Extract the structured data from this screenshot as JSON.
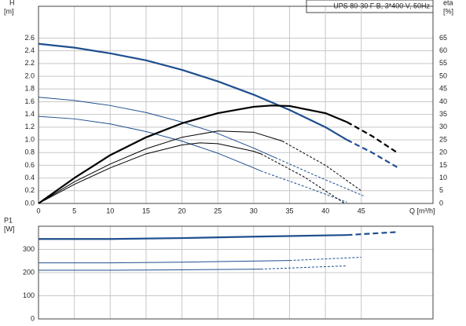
{
  "chart_data": [
    {
      "type": "line",
      "box_label": "UPS 80-30 F B, 3*400 V, 50Hz",
      "y_label": "H",
      "y_unit": "[m]",
      "y2_label": "eta",
      "y2_unit": "[%]",
      "x_label": "Q [m³/h]",
      "xlim": [
        0,
        55
      ],
      "xticks": [
        0,
        5,
        10,
        15,
        20,
        25,
        30,
        35,
        40,
        45
      ],
      "ylim": [
        0,
        3.1
      ],
      "yticks": [
        {
          "value": 0,
          "label": "0.0"
        },
        0.2,
        0.4,
        0.6,
        0.8,
        {
          "value": 1,
          "label": "1.0"
        },
        1.2,
        1.4,
        1.6,
        1.8,
        {
          "value": 2,
          "label": "2.0"
        },
        2.2,
        2.4,
        2.6
      ],
      "y2lim": [
        0,
        77.5
      ],
      "y2ticks": [
        0,
        5,
        10,
        15,
        20,
        25,
        30,
        35,
        40,
        45,
        50,
        55,
        60,
        65
      ],
      "grid": true,
      "series": [
        {
          "color": "#1f4f8f",
          "width": 2.2,
          "style": "solid",
          "x": [
            0,
            5,
            10,
            15,
            20,
            25,
            30,
            35,
            40,
            43
          ],
          "values": [
            2.51,
            2.45,
            2.36,
            2.25,
            2.1,
            1.92,
            1.71,
            1.47,
            1.2,
            1.0
          ]
        },
        {
          "color": "#1f4f8f",
          "width": 2.2,
          "style": "dashed",
          "x": [
            43,
            46.5,
            50
          ],
          "values": [
            1.0,
            0.8,
            0.57
          ]
        },
        {
          "color": "#1f4f8f",
          "width": 1,
          "style": "solid",
          "x": [
            0,
            5,
            10,
            15,
            20,
            25,
            30,
            33
          ],
          "values": [
            1.67,
            1.62,
            1.54,
            1.43,
            1.28,
            1.1,
            0.87,
            0.72
          ]
        },
        {
          "color": "#1f4f8f",
          "width": 1,
          "style": "dashed",
          "x": [
            33,
            39,
            45.3
          ],
          "values": [
            0.72,
            0.42,
            0.12
          ]
        },
        {
          "color": "#1f4f8f",
          "width": 1,
          "style": "solid",
          "x": [
            0,
            5,
            10,
            15,
            20,
            25,
            30,
            31
          ],
          "values": [
            1.37,
            1.33,
            1.25,
            1.13,
            0.98,
            0.79,
            0.56,
            0.51
          ]
        },
        {
          "color": "#1f4f8f",
          "width": 1,
          "style": "dashed",
          "x": [
            31,
            37,
            43
          ],
          "values": [
            0.51,
            0.27,
            0.02
          ]
        },
        {
          "color": "#000000",
          "width": 2.2,
          "style": "solid",
          "axis": "y2",
          "x": [
            0,
            5,
            10,
            15,
            20,
            25,
            30,
            32.5,
            35,
            40,
            43
          ],
          "values": [
            0,
            10,
            19,
            26,
            31.5,
            35.5,
            38,
            38.5,
            38.3,
            35.5,
            32
          ]
        },
        {
          "color": "#000000",
          "width": 2.2,
          "style": "dashed",
          "axis": "y2",
          "x": [
            43,
            46.5,
            50
          ],
          "values": [
            32,
            26.5,
            20
          ]
        },
        {
          "color": "#000000",
          "width": 1,
          "style": "solid",
          "axis": "y2",
          "x": [
            0,
            5,
            10,
            15,
            20,
            25,
            30,
            34
          ],
          "values": [
            0,
            8.5,
            15.5,
            21.5,
            26,
            28.5,
            28,
            24.5
          ]
        },
        {
          "color": "#000000",
          "width": 1,
          "style": "dashed",
          "axis": "y2",
          "x": [
            34,
            40,
            45
          ],
          "values": [
            24.5,
            15,
            5
          ]
        },
        {
          "color": "#000000",
          "width": 1,
          "style": "solid",
          "axis": "y2",
          "x": [
            0,
            5,
            10,
            15,
            20,
            22.5,
            25,
            30,
            31
          ],
          "values": [
            0,
            7.5,
            14,
            19.5,
            23,
            23.8,
            23.5,
            20.5,
            19.5
          ]
        },
        {
          "color": "#000000",
          "width": 1,
          "style": "dashed",
          "axis": "y2",
          "x": [
            31,
            37,
            42.7
          ],
          "values": [
            19.5,
            10.5,
            0
          ]
        }
      ]
    },
    {
      "type": "line",
      "y_label": "P1",
      "y_unit": "[W]",
      "xlim": [
        0,
        55
      ],
      "xticks": [
        0,
        5,
        10,
        15,
        20,
        25,
        30,
        35,
        40,
        45
      ],
      "ylim": [
        0,
        400
      ],
      "yticks": [
        0,
        100,
        200,
        300
      ],
      "grid": true,
      "series": [
        {
          "color": "#1f4f8f",
          "width": 2.2,
          "style": "solid",
          "x": [
            0,
            10,
            20,
            30,
            43
          ],
          "values": [
            345,
            345,
            349,
            355,
            362
          ]
        },
        {
          "color": "#1f4f8f",
          "width": 2.2,
          "style": "dashed",
          "x": [
            43,
            50
          ],
          "values": [
            362,
            375
          ]
        },
        {
          "color": "#1f4f8f",
          "width": 1,
          "style": "solid",
          "x": [
            0,
            10,
            20,
            35
          ],
          "values": [
            242,
            242,
            245,
            252
          ]
        },
        {
          "color": "#1f4f8f",
          "width": 1,
          "style": "dashed",
          "x": [
            35,
            45
          ],
          "values": [
            252,
            266
          ]
        },
        {
          "color": "#1f4f8f",
          "width": 1,
          "style": "solid",
          "x": [
            0,
            10,
            20,
            31
          ],
          "values": [
            210,
            210,
            212,
            215
          ]
        },
        {
          "color": "#1f4f8f",
          "width": 1,
          "style": "dashed",
          "x": [
            31,
            43
          ],
          "values": [
            215,
            229
          ]
        }
      ]
    }
  ]
}
